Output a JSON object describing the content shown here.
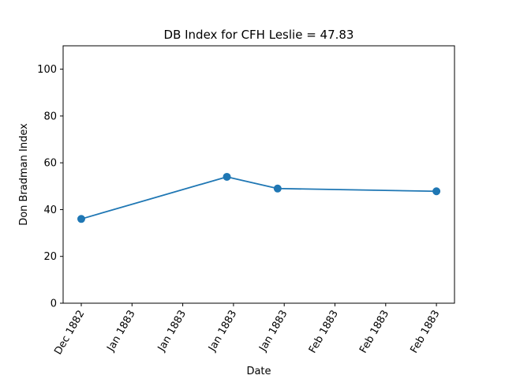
{
  "chart_data": {
    "type": "line",
    "title": "DB Index for CFH Leslie = 47.83",
    "xlabel": "Date",
    "ylabel": "Don Bradman Index",
    "ylim": [
      0,
      110
    ],
    "y_ticks": [
      0,
      20,
      40,
      60,
      80,
      100
    ],
    "x_ticks": [
      "Dec 1882",
      "Jan 1883",
      "Jan 1883",
      "Jan 1883",
      "Jan 1883",
      "Feb 1883",
      "Feb 1883",
      "Feb 1883"
    ],
    "x_tick_rotation": "60deg",
    "grid": false,
    "legend": "none",
    "series": [
      {
        "color": "#1f77b4",
        "marker": "circle",
        "points": [
          {
            "x_tick_index": 0.0,
            "y": 36.0
          },
          {
            "x_tick_index": 2.87,
            "y": 54.0
          },
          {
            "x_tick_index": 3.87,
            "y": 49.0
          },
          {
            "x_tick_index": 7.0,
            "y": 47.83
          }
        ]
      }
    ]
  }
}
